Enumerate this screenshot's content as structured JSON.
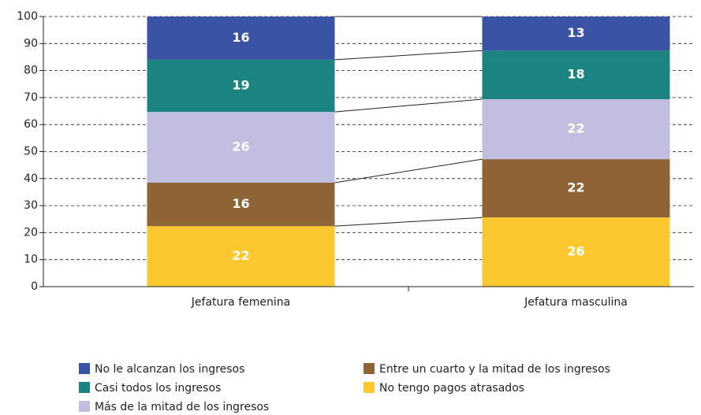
{
  "chart_data": {
    "type": "stacked_bar",
    "categories": [
      "Jefatura femenina",
      "Jefatura masculina"
    ],
    "series": [
      {
        "name": "No tengo pagos atrasados",
        "color": "#fdc82f",
        "values": [
          22.4,
          25.6
        ],
        "value_labels": [
          "22",
          "26"
        ]
      },
      {
        "name": "Entre un cuarto y la mitad de los ingresos",
        "color": "#8f6437",
        "values": [
          16.1,
          21.6
        ],
        "value_labels": [
          "16",
          "22"
        ]
      },
      {
        "name": "Más de la mitad de los ingresos",
        "color": "#c0bfe0",
        "values": [
          26.2,
          22.2
        ],
        "value_labels": [
          "26",
          "22"
        ]
      },
      {
        "name": "Casi todos los ingresos",
        "color": "#1c8480",
        "values": [
          19.3,
          18.0
        ],
        "value_labels": [
          "19",
          "18"
        ]
      },
      {
        "name": "No le alcanzan los ingresos",
        "color": "#3a53a4",
        "values": [
          16.0,
          12.6
        ],
        "value_labels": [
          "16",
          "13"
        ]
      }
    ],
    "ylim": [
      0,
      100
    ],
    "yticks": [
      0,
      10,
      20,
      30,
      40,
      50,
      60,
      70,
      80,
      90,
      100
    ],
    "grid": true
  }
}
